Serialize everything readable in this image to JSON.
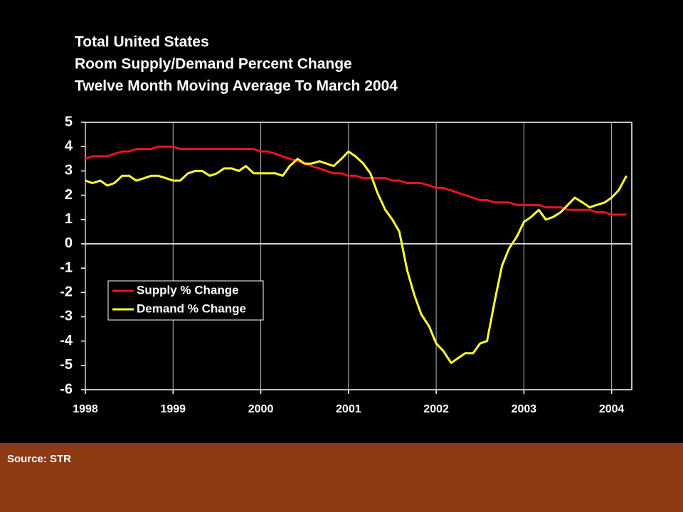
{
  "chart_data": {
    "type": "line",
    "title": [
      "Total United States",
      "Room Supply/Demand Percent Change",
      "Twelve Month Moving Average To March 2004"
    ],
    "source": "Source: STR",
    "x": [
      1998,
      1998.08,
      1998.17,
      1998.25,
      1998.33,
      1998.42,
      1998.5,
      1998.58,
      1998.67,
      1998.75,
      1998.83,
      1998.92,
      1999,
      1999.08,
      1999.17,
      1999.25,
      1999.33,
      1999.42,
      1999.5,
      1999.58,
      1999.67,
      1999.75,
      1999.83,
      1999.92,
      2000,
      2000.08,
      2000.17,
      2000.25,
      2000.33,
      2000.42,
      2000.5,
      2000.58,
      2000.67,
      2000.75,
      2000.83,
      2000.92,
      2001,
      2001.08,
      2001.17,
      2001.25,
      2001.33,
      2001.42,
      2001.5,
      2001.58,
      2001.67,
      2001.75,
      2001.83,
      2001.92,
      2002,
      2002.08,
      2002.17,
      2002.25,
      2002.33,
      2002.42,
      2002.5,
      2002.58,
      2002.67,
      2002.75,
      2002.83,
      2002.92,
      2003,
      2003.08,
      2003.17,
      2003.25,
      2003.33,
      2003.42,
      2003.5,
      2003.58,
      2003.67,
      2003.75,
      2003.83,
      2003.92,
      2004,
      2004.08,
      2004.17
    ],
    "series": [
      {
        "name": "Supply % Change",
        "color": "#e8141c",
        "values": [
          3.5,
          3.6,
          3.6,
          3.6,
          3.7,
          3.8,
          3.8,
          3.9,
          3.9,
          3.9,
          4.0,
          4.0,
          4.0,
          3.9,
          3.9,
          3.9,
          3.9,
          3.9,
          3.9,
          3.9,
          3.9,
          3.9,
          3.9,
          3.9,
          3.8,
          3.8,
          3.7,
          3.6,
          3.5,
          3.4,
          3.3,
          3.2,
          3.1,
          3.0,
          2.9,
          2.9,
          2.8,
          2.8,
          2.7,
          2.7,
          2.7,
          2.7,
          2.6,
          2.6,
          2.5,
          2.5,
          2.5,
          2.4,
          2.3,
          2.3,
          2.2,
          2.1,
          2.0,
          1.9,
          1.8,
          1.8,
          1.7,
          1.7,
          1.7,
          1.6,
          1.6,
          1.6,
          1.6,
          1.5,
          1.5,
          1.5,
          1.4,
          1.4,
          1.4,
          1.4,
          1.3,
          1.3,
          1.2,
          1.2,
          1.2
        ]
      },
      {
        "name": "Demand % Change",
        "color": "#ffff33",
        "values": [
          2.6,
          2.5,
          2.6,
          2.4,
          2.5,
          2.8,
          2.8,
          2.6,
          2.7,
          2.8,
          2.8,
          2.7,
          2.6,
          2.6,
          2.9,
          3.0,
          3.0,
          2.8,
          2.9,
          3.1,
          3.1,
          3.0,
          3.2,
          2.9,
          2.9,
          2.9,
          2.9,
          2.8,
          3.2,
          3.5,
          3.3,
          3.3,
          3.4,
          3.3,
          3.2,
          3.5,
          3.8,
          3.6,
          3.3,
          2.9,
          2.1,
          1.4,
          1.0,
          0.5,
          -1.1,
          -2.1,
          -2.9,
          -3.4,
          -4.1,
          -4.4,
          -4.9,
          -4.7,
          -4.5,
          -4.5,
          -4.1,
          -4.0,
          -2.3,
          -0.9,
          -0.2,
          0.3,
          0.9,
          1.1,
          1.4,
          1.0,
          1.1,
          1.3,
          1.6,
          1.9,
          1.7,
          1.5,
          1.6,
          1.7,
          1.9,
          2.2,
          2.8
        ]
      }
    ],
    "xlim": [
      1998,
      2004.23
    ],
    "xticks": [
      1998,
      1999,
      2000,
      2001,
      2002,
      2003,
      2004
    ],
    "ylim": [
      -6,
      5
    ],
    "yticks": [
      -6,
      -5,
      -4,
      -3,
      -2,
      -1,
      0,
      1,
      2,
      3,
      4,
      5
    ],
    "grid": true
  }
}
